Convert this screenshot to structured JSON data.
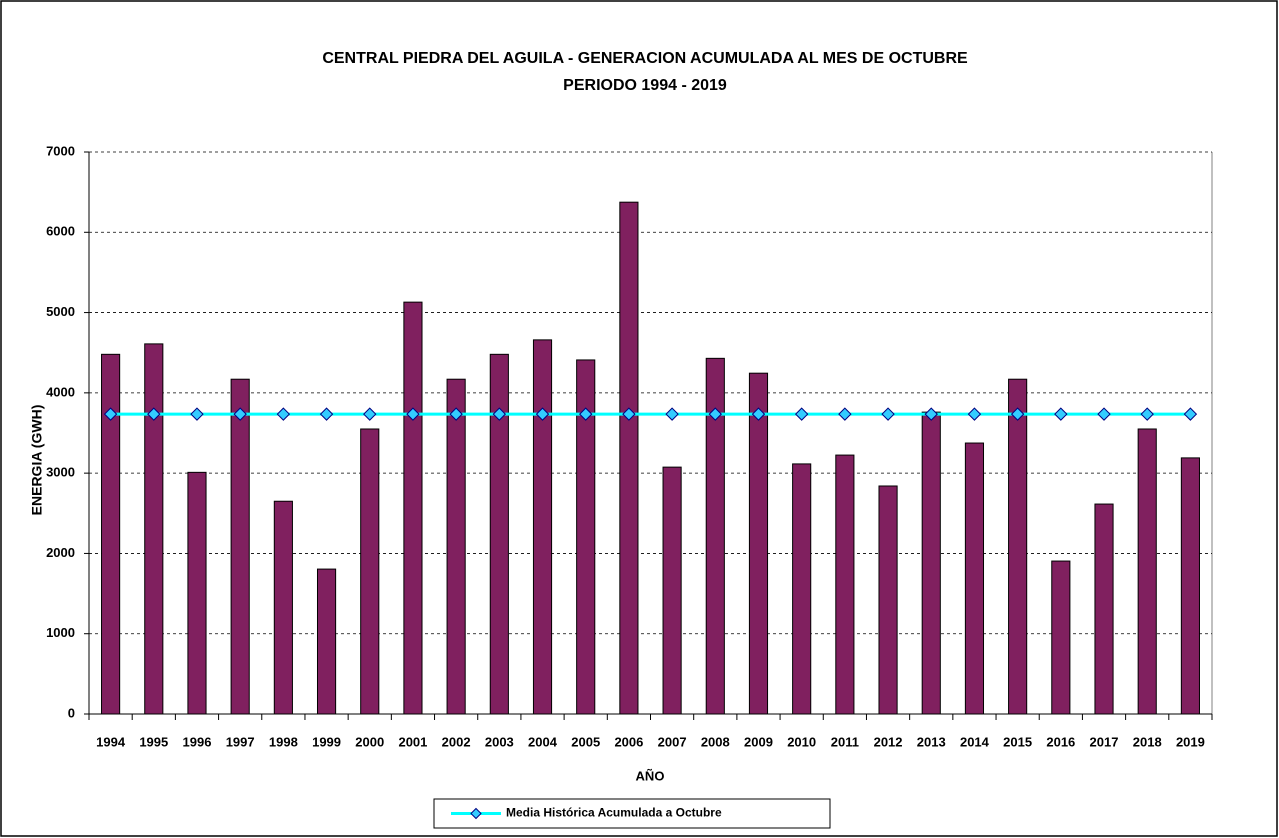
{
  "chart_data": {
    "type": "bar",
    "title": "CENTRAL PIEDRA DEL AGUILA - GENERACION ACUMULADA AL MES DE  OCTUBRE",
    "subtitle": "PERIODO 1994 - 2019",
    "x_label": "AÑO",
    "y_label": "ENERGIA (GWH)",
    "categories": [
      "1994",
      "1995",
      "1996",
      "1997",
      "1998",
      "1999",
      "2000",
      "2001",
      "2002",
      "2003",
      "2004",
      "2005",
      "2006",
      "2007",
      "2008",
      "2009",
      "2010",
      "2011",
      "2012",
      "2013",
      "2014",
      "2015",
      "2016",
      "2017",
      "2018",
      "2019"
    ],
    "series": [
      {
        "type": "bar",
        "color": "#80205f",
        "values": [
          4480,
          4610,
          3010,
          4170,
          2650,
          1805,
          3550,
          5130,
          4170,
          4480,
          4660,
          4410,
          6375,
          3075,
          4430,
          4245,
          3115,
          3225,
          2840,
          3760,
          3375,
          4170,
          1905,
          2615,
          3550,
          3190
        ]
      },
      {
        "type": "line",
        "name": "Media Histórica Acumulada a Octubre",
        "color": "#00ffff",
        "marker_color": "#33ccff",
        "values": [
          3735,
          3735,
          3735,
          3735,
          3735,
          3735,
          3735,
          3735,
          3735,
          3735,
          3735,
          3735,
          3735,
          3735,
          3735,
          3735,
          3735,
          3735,
          3735,
          3735,
          3735,
          3735,
          3735,
          3735,
          3735,
          3735
        ]
      }
    ],
    "ylim": [
      0,
      7000
    ],
    "yticks": [
      0,
      1000,
      2000,
      3000,
      4000,
      5000,
      6000,
      7000
    ],
    "grid": true,
    "legend": "bottom"
  }
}
